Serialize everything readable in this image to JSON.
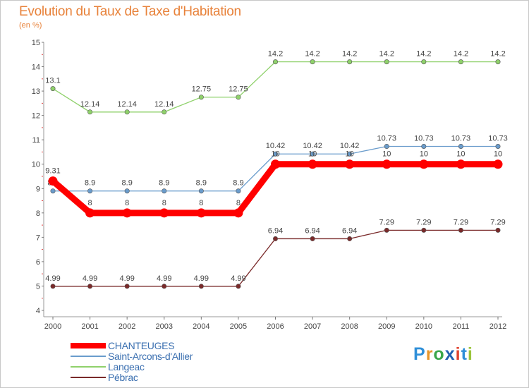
{
  "title": "Evolution du Taux de Taxe d'Habitation",
  "subtitle": "(en %)",
  "logo": {
    "letters": [
      "P",
      "r",
      "o",
      "x",
      "i",
      "t",
      "i"
    ],
    "colors": [
      "#2f8fd8",
      "#e8962a",
      "#3aa64a",
      "#1f5fb0",
      "#e0432f",
      "#2f8fd8",
      "#9ac43a"
    ]
  },
  "chart_data": {
    "type": "line",
    "x": [
      "2000",
      "2001",
      "2002",
      "2003",
      "2004",
      "2005",
      "2006",
      "2007",
      "2008",
      "2009",
      "2010",
      "2011",
      "2012"
    ],
    "yticks": [
      "4",
      "5",
      "6",
      "7",
      "8",
      "9",
      "10",
      "11",
      "12",
      "13",
      "14",
      "15"
    ],
    "ylim": [
      4,
      15
    ],
    "grid": false,
    "legend_position": "bottom-left",
    "series": [
      {
        "name": "Langeac",
        "color": "#8fd16b",
        "values": [
          13.1,
          12.14,
          12.14,
          12.14,
          12.75,
          12.75,
          14.2,
          14.2,
          14.2,
          14.2,
          14.2,
          14.2,
          14.2
        ],
        "labels": [
          "13.1",
          "12.14",
          "12.14",
          "12.14",
          "12.75",
          "12.75",
          "14.2",
          "14.2",
          "14.2",
          "14.2",
          "14.2",
          "14.2",
          "14.2"
        ]
      },
      {
        "name": "Saint-Arcons-d'Allier",
        "color": "#6a9ccc",
        "values": [
          8.9,
          8.9,
          8.9,
          8.9,
          8.9,
          8.9,
          10.42,
          10.42,
          10.42,
          10.73,
          10.73,
          10.73,
          10.73
        ],
        "labels": [
          "8.9",
          "8.9",
          "8.9",
          "8.9",
          "8.9",
          "8.9",
          "10.42",
          "10.42",
          "10.42",
          "10.73",
          "10.73",
          "10.73",
          "10.73"
        ]
      },
      {
        "name": "Pébrac",
        "color": "#7a2a2a",
        "values": [
          4.99,
          4.99,
          4.99,
          4.99,
          4.99,
          4.99,
          6.94,
          6.94,
          6.94,
          7.29,
          7.29,
          7.29,
          7.29
        ],
        "labels": [
          "4.99",
          "4.99",
          "4.99",
          "4.99",
          "4.99",
          "4.99",
          "6.94",
          "6.94",
          "6.94",
          "7.29",
          "7.29",
          "7.29",
          "7.29"
        ]
      },
      {
        "name": "CHANTEUGES",
        "color": "#ff0000",
        "values": [
          9.31,
          8,
          8,
          8,
          8,
          8,
          10,
          10,
          10,
          10,
          10,
          10,
          10
        ],
        "labels": [
          "9.31",
          "8",
          "8",
          "8",
          "8",
          "8",
          "10",
          "10",
          "10",
          "10",
          "10",
          "10",
          "10"
        ]
      }
    ],
    "legend": [
      "CHANTEUGES",
      "Saint-Arcons-d'Allier",
      "Langeac",
      "Pébrac"
    ]
  }
}
